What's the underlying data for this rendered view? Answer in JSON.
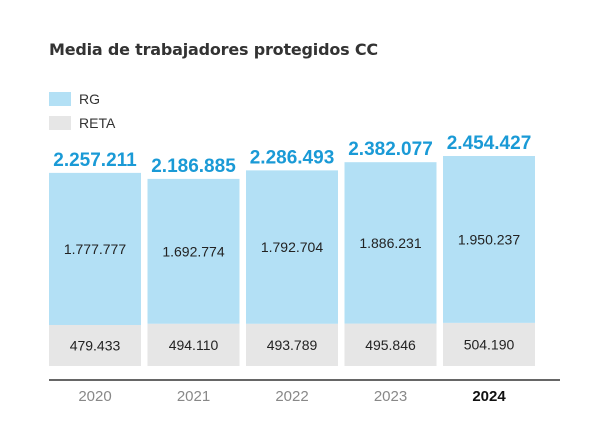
{
  "chart_data": {
    "type": "bar",
    "stacked": true,
    "title": "Media de trabajadores protegidos CC",
    "categories": [
      "2020",
      "2021",
      "2022",
      "2023",
      "2024"
    ],
    "highlighted_category": "2024",
    "series": [
      {
        "name": "RETA",
        "color": "#e6e6e6",
        "values": [
          479433,
          494110,
          493789,
          495846,
          504190
        ],
        "labels": [
          "479.433",
          "494.110",
          "493.789",
          "495.846",
          "504.190"
        ]
      },
      {
        "name": "RG",
        "color": "#b3e0f5",
        "values": [
          1777777,
          1692774,
          1792704,
          1886231,
          1950237
        ],
        "labels": [
          "1.777.777",
          "1.692.774",
          "1.792.704",
          "1.886.231",
          "1.950.237"
        ]
      }
    ],
    "totals": [
      2257211,
      2186885,
      2286493,
      2382077,
      2454427
    ],
    "total_labels": [
      "2.257.211",
      "2.186.885",
      "2.286.493",
      "2.382.077",
      "2.454.427"
    ],
    "total_label_color": "#1a9ad6",
    "ylim": [
      0,
      2454427
    ],
    "legend_position": "top-left",
    "grid": false
  },
  "legend": {
    "items": [
      {
        "label": "RG",
        "color": "#b3e0f5"
      },
      {
        "label": "RETA",
        "color": "#e6e6e6"
      }
    ]
  }
}
